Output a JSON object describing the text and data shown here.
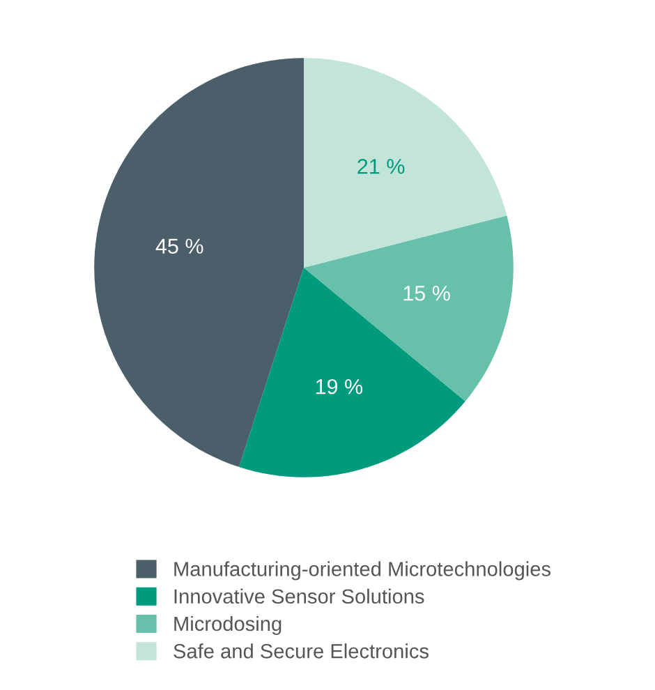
{
  "chart_data": {
    "type": "pie",
    "categories": [
      "Manufacturing-oriented Microtechnologies",
      "Innovative Sensor Solutions",
      "Microdosing",
      "Safe and Secure Electronics"
    ],
    "values": [
      45,
      19,
      15,
      21
    ],
    "colors": [
      "#4a5f69",
      "#009b7d",
      "#66c0aa",
      "#c2e4d9"
    ],
    "value_labels": [
      "45 %",
      "19 %",
      "15 %",
      "21 %"
    ],
    "legend": "bottom"
  }
}
